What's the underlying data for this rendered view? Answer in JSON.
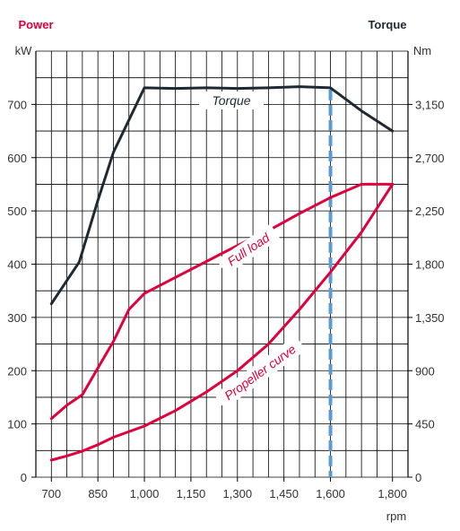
{
  "chart_data": {
    "type": "line",
    "title_left": "Power",
    "title_right": "Torque",
    "left_unit": "kW",
    "right_unit": "Nm",
    "x_unit": "rpm",
    "x_ticks": [
      700,
      850,
      1000,
      1150,
      1300,
      1450,
      1600,
      1800
    ],
    "x_tick_labels": [
      "700",
      "850",
      "1,000",
      "1,150",
      "1,300",
      "1,450",
      "1,600",
      "1,800"
    ],
    "y_left_ticks": [
      0,
      100,
      200,
      300,
      400,
      500,
      600,
      700
    ],
    "y_left_tick_labels": [
      "0",
      "100",
      "200",
      "300",
      "400",
      "500",
      "600",
      "700"
    ],
    "y_right_ticks": [
      0,
      450,
      900,
      1350,
      1800,
      2250,
      2700,
      3150
    ],
    "y_right_tick_labels": [
      "0",
      "450",
      "900",
      "1,350",
      "1,800",
      "2,250",
      "2,700",
      "3,150"
    ],
    "xlim": [
      650,
      1850
    ],
    "ylim_left": [
      0,
      800
    ],
    "ylim_right": [
      0,
      3600
    ],
    "grid": true,
    "marker_rpm": 1600,
    "colors": {
      "power": "#e0003c",
      "torque": "#1e2a33",
      "marker": "#5a9bd5",
      "grid": "#000000"
    },
    "series": [
      {
        "name": "Torque",
        "axis": "right",
        "color": "#1e2a33",
        "x": [
          700,
          790,
          850,
          900,
          1000,
          1100,
          1200,
          1300,
          1400,
          1500,
          1600,
          1700,
          1800
        ],
        "y": [
          1465,
          1818,
          2340,
          2745,
          3290,
          3285,
          3290,
          3285,
          3290,
          3300,
          3290,
          3095,
          2925
        ]
      },
      {
        "name": "Full load",
        "axis": "left",
        "color": "#e0003c",
        "x": [
          700,
          750,
          800,
          850,
          900,
          950,
          1000,
          1100,
          1200,
          1300,
          1400,
          1500,
          1600,
          1700,
          1800
        ],
        "y": [
          110,
          135,
          155,
          205,
          255,
          315,
          345,
          375,
          405,
          435,
          463,
          495,
          525,
          550,
          550
        ]
      },
      {
        "name": "Propeller curve",
        "axis": "left",
        "color": "#e0003c",
        "x": [
          700,
          750,
          800,
          850,
          900,
          1000,
          1100,
          1200,
          1300,
          1400,
          1500,
          1600,
          1700,
          1800
        ],
        "y": [
          32,
          40,
          49,
          61,
          75,
          96,
          125,
          160,
          200,
          250,
          315,
          385,
          460,
          550
        ]
      }
    ]
  }
}
